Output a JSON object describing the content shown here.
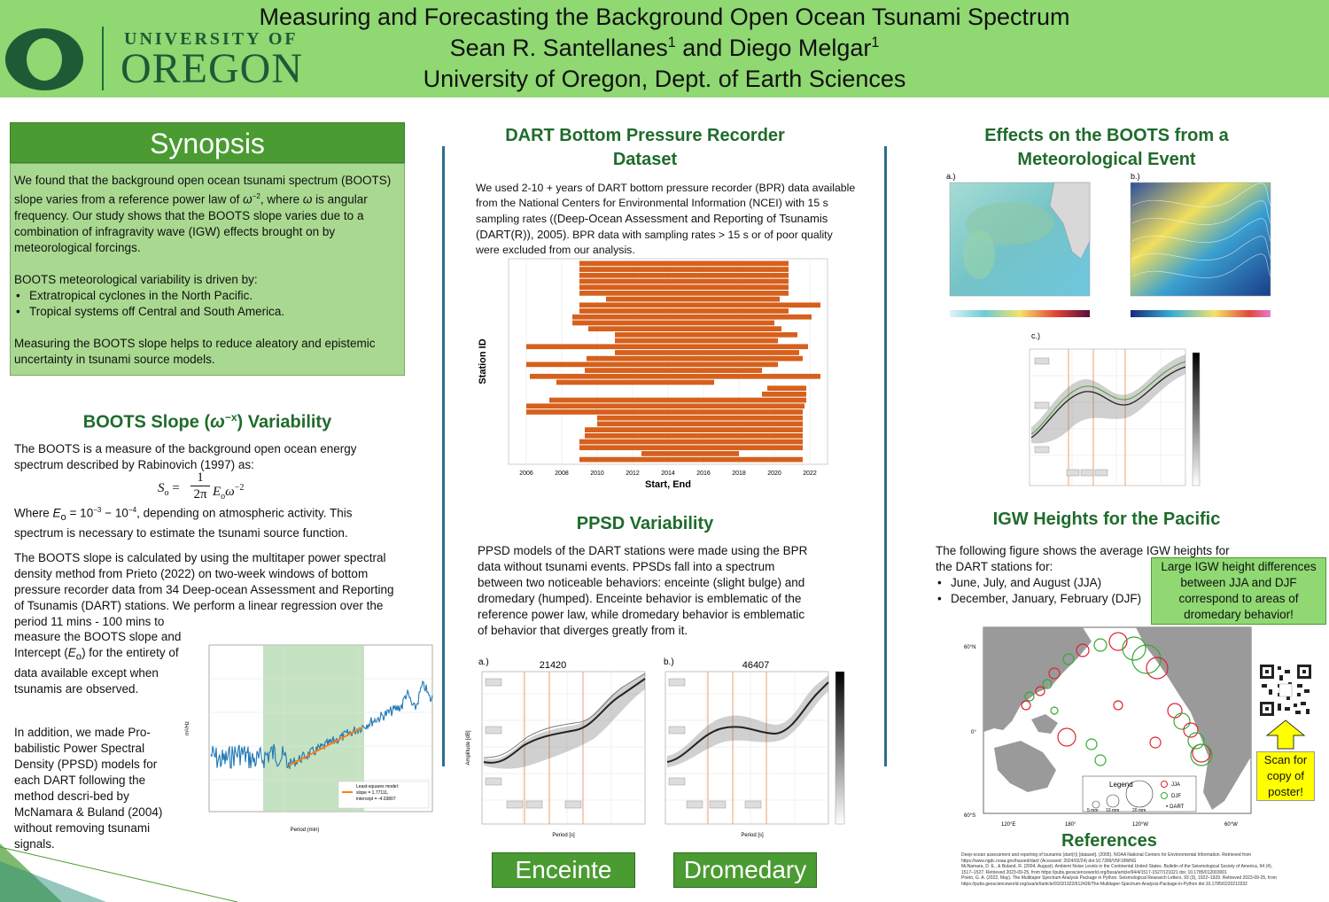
{
  "header": {
    "logo_university": "UNIVERSITY OF",
    "logo_oregon": "OREGON",
    "title": "Measuring and Forecasting the Background Open Ocean Tsunami Spectrum",
    "authors": "Sean R. Santellanes",
    "author_sup_1": "1",
    "authors_and": "and Diego Melgar",
    "author_sup_2": "1",
    "affiliation": "University of Oregon, Dept. of Earth Sciences"
  },
  "synopsis": {
    "heading": "Synopsis",
    "p1_a": "We found that the background open ocean tsunami spectrum (BOOTS) slope varies from a reference power law of ",
    "p1_omega": "ω",
    "p1_exp": "−2",
    "p1_b": ", where ",
    "p1_omega2": "ω",
    "p1_c": " is angular frequency. Our study shows that the BOOTS slope varies due to a combination of infragravity wave (IGW) effects brought on by meteorological forcings.",
    "p2": "BOOTS meteorological variability is driven by:",
    "bullets": [
      "Extratropical cyclones in the North Pacific.",
      "Tropical systems off Central and South America."
    ],
    "p3": "Measuring the BOOTS slope helps to reduce aleatory and epistemic uncertainty in tsunami source models."
  },
  "boots_slope": {
    "title_a": "BOOTS Slope (",
    "title_omega": "ω",
    "title_exp": "−x",
    "title_b": ") Variability",
    "p1": "The BOOTS is a measure of the background open ocean energy spectrum described by Rabinovich (1997) as:",
    "eq_lhs": "S",
    "eq_lhs_sub": "o",
    "eq_eq": " = ",
    "eq_num": "1",
    "eq_den": "2π",
    "eq_E": "E",
    "eq_E_sub": "o",
    "eq_omega": "ω",
    "eq_exp": "−2",
    "p2_a": "Where ",
    "p2_E": "E",
    "p2_E_sub": "o",
    "p2_b": " = 10",
    "p2_exp1": "−3",
    "p2_c": " − 10",
    "p2_exp2": "−4",
    "p2_d": ", depending on atmospheric activity. This spectrum is necessary to estimate the tsunami source function.",
    "p3": "The BOOTS slope is calculated by using the multitaper power spectral density method from Prieto (2022) on two-week windows of  bottom pressure recorder data from 34 Deep-ocean Assessment and Reporting of Tsunamis (DART) stations. We perform a linear regression over the period 11 mins  - 100 mins to",
    "p3_cont_a": "measure the BOOTS slope and Intercept (",
    "p3_E": "E",
    "p3_E_sub": "o",
    "p3_cont_b": ") for the entirety of data available except when tsunamis are observed.",
    "p4": "In addition, we made Pro-babilistic Power Spectral Density (PPSD) models for each DART following the method descri-bed by McNamara & Buland (2004) without removing tsunami signals.",
    "plot_ylabel": "m²/Hz",
    "plot_xlabel": "Period (min)",
    "legend_title": "Least-squares model:",
    "legend_slope": "slope = 1.77111,",
    "legend_intercept": "intercept = -4.03807"
  },
  "dart": {
    "title_1": "DART Bottom Pressure Recorder",
    "title_2": "Dataset",
    "text_a": "We used 2-10 + years of DART bottom pressure recorder (BPR) data available from the  National Centers for Environmental Information (NCEI) with 15 s sampling rates (",
    "text_cite": "(Deep-Ocean Assessment and Reporting of Tsunamis (DART(R)), 2005)",
    "text_b": ". BPR data with sampling rates > 15 s or of poor quality were excluded from our analysis.",
    "ylabel": "Station ID",
    "xlabel": "Start, End"
  },
  "dart_chart": {
    "type": "bar",
    "x_ticks": [
      "2006",
      "2008",
      "2010",
      "2012",
      "2014",
      "2016",
      "2018",
      "2020",
      "2022"
    ],
    "bar_color": "#d6601c"
  },
  "ppsd": {
    "title": "PPSD Variability",
    "text": "PPSD models of the DART stations were made using the BPR data without tsunami events. PPSDs fall into a spectrum between two noticeable behaviors: enceinte (slight bulge) and dromedary (humped). Enceinte behavior is emblematic of the reference power law, while dromedary behavior is emblematic of behavior that diverges greatly from it.",
    "panel_a_letter": "a.)",
    "panel_a_station": "21420",
    "panel_b_letter": "b.)",
    "panel_b_station": "46407",
    "ylabel": "Amplitude [dB]",
    "xlabel": "Period [s]",
    "label_enceinte": "Enceinte",
    "label_dromedary": "Dromedary"
  },
  "meteo": {
    "title_1": "Effects on the BOOTS from a",
    "title_2": "Meteorological Event",
    "panel_a": "a.)",
    "panel_b": "b.)",
    "panel_c": "c.)"
  },
  "igw": {
    "title": "IGW Heights for the Pacific",
    "text": "The following figure shows the average IGW heights for the DART stations for:",
    "bullets": [
      "June, July,  and August (JJA)",
      "December, January, February (DJF)"
    ],
    "callout": "Large IGW height differences between JJA and DJF correspond to areas of dromedary behavior!",
    "scan": "Scan for copy of poster!",
    "legend_title": "Legend",
    "legend_5": "5 mm",
    "legend_10": "10 mm",
    "legend_20": "20 mm",
    "legend_jja": "JJA",
    "legend_djf": "DJF",
    "legend_dart": "DART",
    "lat_60n": "60°N",
    "lat_0": "0°",
    "lat_60s": "60°S",
    "lon_120e": "120°E",
    "lon_180": "180°",
    "lon_120w": "120°W",
    "lon_60w": "60°W"
  },
  "references": {
    "title": "References",
    "items": [
      "Deep-ocean assessment and reporting of tsunamis (dart(r)) [dataset]. (2005). NOAA National Centers for Environmental Information. Retrieved from https://www.ngdc.noaa.gov/hazard/dart/ (Accessed: 2024/02/24) doi:10.7289/V5F18WNS",
      "McNamara, D. E., & Buland, R. (2004, August). Ambient Noise Levels in the Continental United States. Bulletin of the Seismological Society of America, 94 (4), 1517–1527. Retrieved 2023-09-25, from https://pubs.geoscienceworld.org/bssa/article/94/4/1517-1527/121021 doi: 10.1785/012003001",
      "Prieto, G. A. (2022, May). The Multitaper Spectrum Analysis Package in Python. Seismological Research Letters, 93 (3), 1922–1929. Retrieved 2023-09-25, from https://pubs.geoscienceworld.org/ssa/srl/article/93/3/1922/612436/The-Multitaper-Spectrum-Analysis-Package-in-Python doi:10.1785/0220210332"
    ]
  }
}
